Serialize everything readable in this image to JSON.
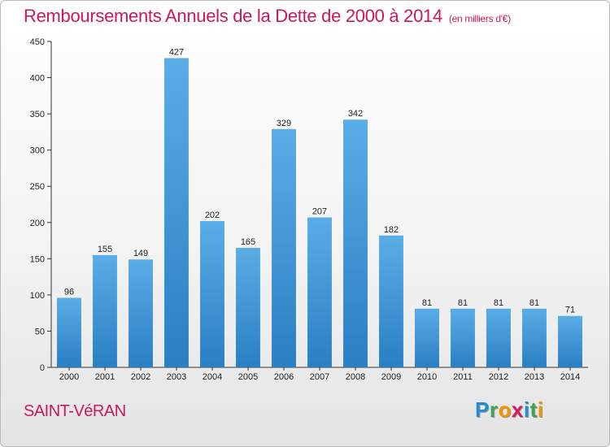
{
  "title": "Remboursements Annuels de la Dette de 2000 à 2014",
  "unit": "(en milliers d'€)",
  "place": "SAINT-VéRAN",
  "logo": {
    "letters": [
      "P",
      "r",
      "o",
      "x",
      "i",
      "t",
      "i"
    ],
    "colors": [
      "#1e8fd0",
      "#3aa655",
      "#f29400",
      "#d6175c",
      "#1e8fd0",
      "#3aa655",
      "#f29400"
    ]
  },
  "chart_data": {
    "type": "bar",
    "title": "Remboursements Annuels de la Dette de 2000 à 2014",
    "xlabel": "",
    "ylabel": "",
    "categories": [
      "2000",
      "2001",
      "2002",
      "2003",
      "2004",
      "2005",
      "2006",
      "2007",
      "2008",
      "2009",
      "2010",
      "2011",
      "2012",
      "2013",
      "2014"
    ],
    "values": [
      96,
      155,
      149,
      427,
      202,
      165,
      329,
      207,
      342,
      182,
      81,
      81,
      81,
      81,
      71
    ],
    "data_labels": [
      "96",
      "155",
      "149",
      "427",
      "202",
      "165",
      "329",
      "207",
      "342",
      "182",
      "81",
      "81",
      "81",
      "81",
      "71"
    ],
    "ylim": [
      0,
      450
    ],
    "yticks": [
      0,
      50,
      100,
      150,
      200,
      250,
      300,
      350,
      400,
      450
    ],
    "ytick_labels": [
      "0",
      "50",
      "100",
      "150",
      "200",
      "250",
      "300",
      "350",
      "400",
      "450"
    ],
    "grid": false,
    "legend": "none",
    "bar_color_top": "#5aade6",
    "bar_color_bottom": "#2a7fc2"
  }
}
